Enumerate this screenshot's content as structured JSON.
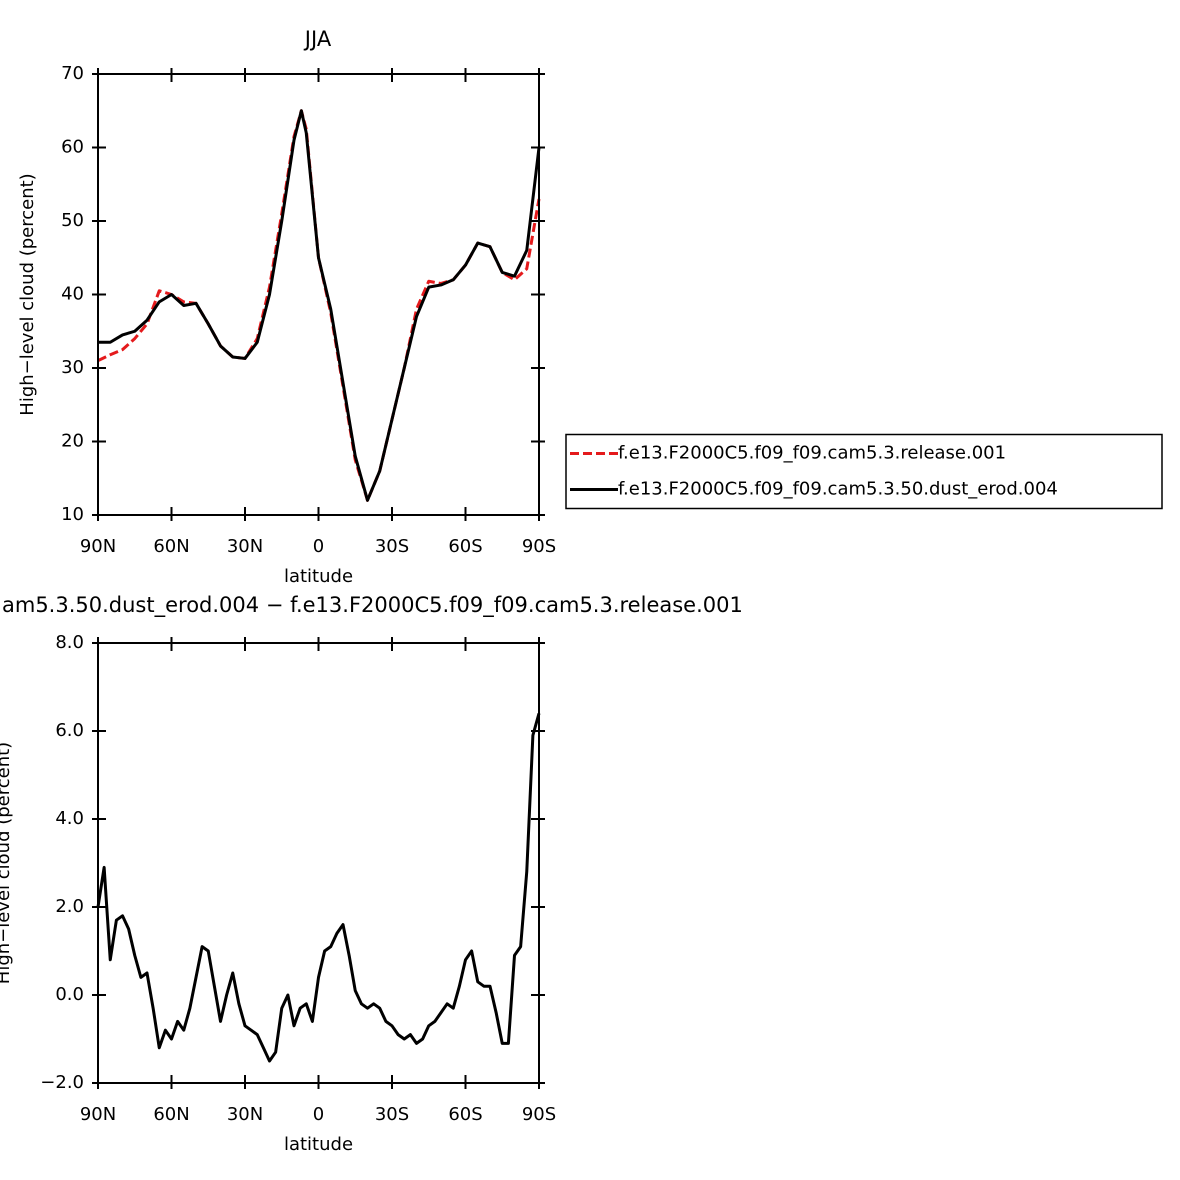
{
  "chart_data": [
    {
      "type": "line",
      "title": "JJA",
      "xlabel": "latitude",
      "ylabel": "High−level cloud (percent)",
      "x": [
        90,
        85,
        80,
        75,
        70,
        65,
        60,
        55,
        50,
        45,
        40,
        35,
        30,
        25,
        20,
        15,
        10,
        7,
        5,
        0,
        -5,
        -10,
        -15,
        -20,
        -25,
        -30,
        -35,
        -40,
        -45,
        -50,
        -55,
        -60,
        -65,
        -70,
        -75,
        -80,
        -85,
        -90
      ],
      "series": [
        {
          "name": "f.e13.F2000C5.f09_f09.cam5.3.release.001",
          "color": "#e41a1c",
          "dash": "dashed",
          "values": [
            31,
            31.8,
            32.5,
            34,
            36,
            40.5,
            40,
            39,
            38.8,
            36,
            33,
            31.5,
            31.3,
            34,
            41,
            51,
            61.5,
            65,
            62.5,
            45,
            37.5,
            27.5,
            17.5,
            12,
            16,
            23,
            30,
            38,
            41.8,
            41.5,
            42,
            44,
            47,
            46.5,
            43,
            42,
            43.5,
            53
          ]
        },
        {
          "name": "f.e13.F2000C5.f09_f09.cam5.3.50.dust_erod.004",
          "color": "#000000",
          "dash": "solid",
          "values": [
            33.5,
            33.5,
            34.5,
            35,
            36.5,
            39,
            40,
            38.5,
            38.8,
            36,
            33,
            31.5,
            31.3,
            33.5,
            40,
            50,
            61,
            65,
            62,
            45,
            38,
            28,
            18,
            12,
            16,
            23,
            30,
            37,
            41,
            41.3,
            42,
            44,
            47,
            46.5,
            43,
            42.5,
            46,
            60
          ]
        }
      ],
      "xlim": [
        90,
        -90
      ],
      "xticks": [
        {
          "value": 90,
          "label": "90N"
        },
        {
          "value": 60,
          "label": "60N"
        },
        {
          "value": 30,
          "label": "30N"
        },
        0,
        {
          "value": -30,
          "label": "30S"
        },
        {
          "value": -60,
          "label": "60S"
        },
        {
          "value": -90,
          "label": "90S"
        }
      ],
      "ylim": [
        10,
        70
      ],
      "yticks": [
        10,
        20,
        30,
        40,
        50,
        60,
        70
      ],
      "legend": "right"
    },
    {
      "type": "line",
      "title": "am5.3.50.dust_erod.004 − f.e13.F2000C5.f09_f09.cam5.3.release.001",
      "xlabel": "latitude",
      "ylabel": "High−level cloud (percent)",
      "x": [
        90,
        87.5,
        85,
        82.5,
        80,
        77.5,
        75,
        72.5,
        70,
        67.5,
        65,
        62.5,
        60,
        57.5,
        55,
        52.5,
        50,
        47.5,
        45,
        42.5,
        40,
        37.5,
        35,
        32.5,
        30,
        27.5,
        25,
        22.5,
        20,
        17.5,
        15,
        12.5,
        10,
        7.5,
        5,
        2.5,
        0,
        -2.5,
        -5,
        -7.5,
        -10,
        -12.5,
        -15,
        -17.5,
        -20,
        -22.5,
        -25,
        -27.5,
        -30,
        -32.5,
        -35,
        -37.5,
        -40,
        -42.5,
        -45,
        -47.5,
        -50,
        -52.5,
        -55,
        -57.5,
        -60,
        -62.5,
        -65,
        -67.5,
        -70,
        -72.5,
        -75,
        -77.5,
        -80,
        -82.5,
        -85,
        -87.5,
        -90
      ],
      "series": [
        {
          "color": "#000000",
          "dash": "solid",
          "values": [
            2.0,
            2.9,
            0.8,
            1.7,
            1.8,
            1.5,
            0.9,
            0.4,
            0.5,
            -0.3,
            -1.2,
            -0.8,
            -1.0,
            -0.6,
            -0.8,
            -0.3,
            0.4,
            1.1,
            1.0,
            0.2,
            -0.6,
            0.0,
            0.5,
            -0.2,
            -0.7,
            -0.8,
            -0.9,
            -1.2,
            -1.5,
            -1.3,
            -0.3,
            0.0,
            -0.7,
            -0.3,
            -0.2,
            -0.6,
            0.4,
            1.0,
            1.1,
            1.4,
            1.6,
            0.9,
            0.1,
            -0.2,
            -0.3,
            -0.2,
            -0.3,
            -0.6,
            -0.7,
            -0.9,
            -1.0,
            -0.9,
            -1.1,
            -1.0,
            -0.7,
            -0.6,
            -0.4,
            -0.2,
            -0.3,
            0.2,
            0.8,
            1.0,
            0.3,
            0.2,
            0.2,
            -0.4,
            -1.1,
            -1.1,
            0.9,
            1.1,
            2.8,
            5.9,
            6.4
          ]
        }
      ],
      "xlim": [
        90,
        -90
      ],
      "xticks": [
        {
          "value": 90,
          "label": "90N"
        },
        {
          "value": 60,
          "label": "60N"
        },
        {
          "value": 30,
          "label": "30N"
        },
        0,
        {
          "value": -30,
          "label": "30S"
        },
        {
          "value": -60,
          "label": "60S"
        },
        {
          "value": -90,
          "label": "90S"
        }
      ],
      "ylim": [
        -2,
        8
      ],
      "yticks": [
        {
          "value": -2,
          "label": "−2.0"
        },
        {
          "value": 0,
          "label": "0.0"
        },
        {
          "value": 2,
          "label": "2.0"
        },
        {
          "value": 4,
          "label": "4.0"
        },
        {
          "value": 6,
          "label": "6.0"
        },
        {
          "value": 8,
          "label": "8.0"
        }
      ]
    }
  ]
}
